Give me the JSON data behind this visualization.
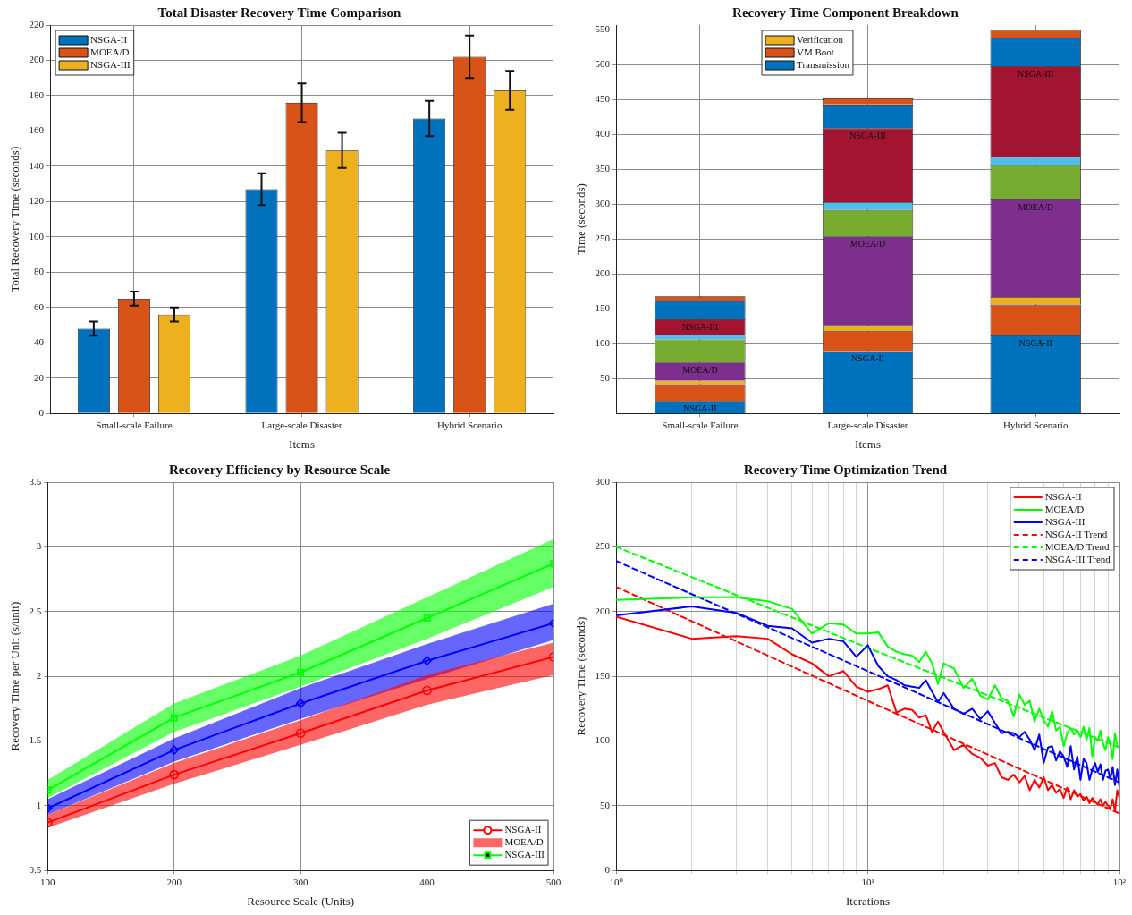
{
  "chart_data": [
    {
      "type": "bar",
      "title": "Total Disaster Recovery Time Comparison",
      "xlabel": "Items",
      "ylabel": "Total Recovery Time (seconds)",
      "categories": [
        "Small-scale Failure",
        "Large-scale Disaster",
        "Hybrid Scenario"
      ],
      "series": [
        {
          "name": "NSGA-II",
          "color": "#0072bd",
          "values": [
            48,
            127,
            167
          ],
          "errors": [
            4,
            9,
            10
          ]
        },
        {
          "name": "MOEA/D",
          "color": "#d95319",
          "values": [
            65,
            176,
            202
          ],
          "errors": [
            4,
            11,
            12
          ]
        },
        {
          "name": "NSGA-III",
          "color": "#edb120",
          "values": [
            56,
            149,
            183
          ],
          "errors": [
            4,
            10,
            11
          ]
        }
      ],
      "ylim": [
        0,
        220
      ],
      "yticks": [
        0,
        20,
        40,
        60,
        80,
        100,
        120,
        140,
        160,
        180,
        200,
        220
      ],
      "grid": true,
      "legend": "top left"
    },
    {
      "type": "bar",
      "title": "Recovery Time Component Breakdown",
      "xlabel": "Items",
      "ylabel": "Time (seconds)",
      "stacked": true,
      "categories": [
        "Small-scale Failure",
        "Large-scale Disaster",
        "Hybrid Scenario"
      ],
      "series": [
        {
          "name": "Transmission",
          "color": "#0072bd",
          "values": [
            18,
            89,
            112
          ]
        },
        {
          "name": "VM Boot",
          "color": "#d95319",
          "values": [
            24,
            29,
            44
          ]
        },
        {
          "name": "Verification",
          "color": "#edb120",
          "values": [
            5,
            9,
            11
          ]
        },
        {
          "color": "#7e2f8e",
          "values": [
            26,
            127,
            140
          ]
        },
        {
          "color": "#77ac30",
          "values": [
            33,
            38,
            49
          ]
        },
        {
          "color": "#4dbeee",
          "values": [
            7,
            11,
            12
          ]
        },
        {
          "color": "#a2142f",
          "values": [
            22,
            106,
            130
          ]
        },
        {
          "color": "#0072bd",
          "values": [
            27,
            34,
            41
          ]
        },
        {
          "color": "#d95319",
          "values": [
            6,
            9,
            11
          ]
        }
      ],
      "annotations": [
        {
          "text": "NSGA-II",
          "x": "Small-scale Failure",
          "y": 18
        },
        {
          "text": "MOEA/D",
          "x": "Small-scale Failure",
          "y": 73
        },
        {
          "text": "NSGA-III",
          "x": "Small-scale Failure",
          "y": 135
        },
        {
          "text": "NSGA-II",
          "x": "Large-scale Disaster",
          "y": 89
        },
        {
          "text": "MOEA/D",
          "x": "Large-scale Disaster",
          "y": 254
        },
        {
          "text": "NSGA-III",
          "x": "Large-scale Disaster",
          "y": 409
        },
        {
          "text": "NSGA-II",
          "x": "Hybrid Scenario",
          "y": 112
        },
        {
          "text": "MOEA/D",
          "x": "Hybrid Scenario",
          "y": 307
        },
        {
          "text": "NSGA-III",
          "x": "Hybrid Scenario",
          "y": 498
        }
      ],
      "ylim": [
        0,
        557
      ],
      "yticks": [
        50,
        100,
        150,
        200,
        250,
        300,
        350,
        400,
        450,
        500,
        550
      ],
      "grid": true,
      "legend": "top"
    },
    {
      "type": "line",
      "title": "Recovery Efficiency by Resource Scale",
      "xlabel": "Resource Scale (Units)",
      "ylabel": "Recovery Time per Unit (s/unit)",
      "x": [
        100,
        200,
        300,
        400,
        500
      ],
      "series": [
        {
          "name": "NSGA-II",
          "color": "#ff0000",
          "marker": "circle",
          "values": [
            0.87,
            1.24,
            1.56,
            1.89,
            2.15
          ],
          "lower": [
            0.83,
            1.17,
            1.47,
            1.78,
            2.01
          ],
          "upper": [
            0.93,
            1.33,
            1.66,
            2.01,
            2.26
          ]
        },
        {
          "name": "MOEA/D",
          "type": "area",
          "color": "#ff6666",
          "values": [
            null,
            null,
            null,
            null,
            null
          ]
        },
        {
          "name": "NSGA-III",
          "color": "#00ff00",
          "marker": "square",
          "values": [
            1.12,
            1.68,
            2.03,
            2.45,
            2.87
          ],
          "lower": [
            1.06,
            1.57,
            1.92,
            2.29,
            2.69
          ],
          "upper": [
            1.2,
            1.79,
            2.16,
            2.61,
            3.06
          ]
        },
        {
          "color": "#0000ff",
          "marker": "diamond",
          "values": [
            0.98,
            1.43,
            1.79,
            2.12,
            2.41
          ],
          "lower": [
            0.93,
            1.34,
            1.67,
            1.98,
            2.28
          ],
          "upper": [
            1.05,
            1.52,
            1.91,
            2.25,
            2.56
          ]
        }
      ],
      "xlim": [
        100,
        500
      ],
      "xticks": [
        100,
        200,
        300,
        400,
        500
      ],
      "ylim": [
        0.5,
        3.5
      ],
      "yticks": [
        0.5,
        1,
        1.5,
        2,
        2.5,
        3,
        3.5
      ],
      "grid": true,
      "legend": "bottom right"
    },
    {
      "type": "line",
      "title": "Recovery Time Optimization Trend",
      "xlabel": "Iterations",
      "ylabel": "Recovery Time (seconds)",
      "log": "x",
      "x": [
        1,
        2,
        3,
        4,
        5,
        6,
        7,
        8,
        9,
        10,
        11,
        12,
        13,
        14,
        15,
        16,
        17,
        18,
        19,
        20,
        22,
        24,
        26,
        28,
        30,
        32,
        34,
        36,
        38,
        40,
        42,
        44,
        46,
        48,
        50,
        52,
        54,
        56,
        58,
        60,
        62,
        64,
        66,
        68,
        70,
        72,
        74,
        76,
        78,
        80,
        82,
        84,
        86,
        88,
        90,
        92,
        94,
        96,
        98,
        100
      ],
      "series": [
        {
          "name": "NSGA-II",
          "color": "#ff0000",
          "values": [
            196,
            179,
            181,
            179,
            167,
            160,
            150,
            154,
            142,
            138,
            140,
            143,
            122,
            125,
            124,
            118,
            120,
            107,
            115,
            107,
            93,
            97,
            90,
            87,
            81,
            83,
            72,
            70,
            74,
            68,
            73,
            62,
            70,
            64,
            72,
            62,
            66,
            60,
            63,
            56,
            64,
            55,
            62,
            57,
            59,
            54,
            57,
            52,
            56,
            53,
            51,
            55,
            50,
            53,
            50,
            48,
            55,
            46,
            62,
            56
          ]
        },
        {
          "name": "MOEA/D",
          "color": "#00ff00",
          "values": [
            209,
            211,
            211,
            208,
            202,
            183,
            191,
            190,
            183,
            183,
            184,
            173,
            169,
            167,
            166,
            161,
            169,
            160,
            144,
            160,
            156,
            141,
            148,
            135,
            132,
            143,
            133,
            131,
            119,
            136,
            128,
            131,
            115,
            125,
            116,
            111,
            123,
            108,
            111,
            96,
            106,
            110,
            105,
            108,
            103,
            111,
            101,
            110,
            88,
            103,
            100,
            108,
            98,
            93,
            103,
            98,
            86,
            106,
            96,
            95
          ]
        },
        {
          "name": "NSGA-III",
          "color": "#0000ff",
          "values": [
            197,
            204,
            199,
            189,
            187,
            176,
            179,
            177,
            165,
            174,
            158,
            150,
            147,
            143,
            142,
            141,
            147,
            138,
            130,
            137,
            125,
            121,
            125,
            117,
            123,
            114,
            106,
            107,
            106,
            103,
            107,
            101,
            93,
            105,
            83,
            95,
            96,
            85,
            92,
            88,
            80,
            96,
            78,
            88,
            70,
            86,
            83,
            70,
            78,
            83,
            76,
            82,
            70,
            77,
            78,
            71,
            80,
            66,
            78,
            64
          ]
        },
        {
          "name": "NSGA-II Trend",
          "color": "#ff0000",
          "line_style": "dashed",
          "x": [
            1,
            10,
            100
          ],
          "values": [
            219,
            131,
            44
          ]
        },
        {
          "name": "MOEA/D Trend",
          "color": "#00ff00",
          "line_style": "dashed",
          "x": [
            1,
            10,
            100
          ],
          "values": [
            250,
            172,
            95
          ]
        },
        {
          "name": "NSGA-III Trend",
          "color": "#0000ff",
          "line_style": "dashed",
          "x": [
            1,
            10,
            100
          ],
          "values": [
            239,
            154,
            68
          ]
        }
      ],
      "xlim": [
        1,
        100
      ],
      "xticks": [
        {
          "value": 1,
          "label": "10⁰"
        },
        {
          "value": 2,
          "label": null
        },
        {
          "value": 3,
          "label": null
        },
        {
          "value": 4,
          "label": null
        },
        {
          "value": 5,
          "label": null
        },
        {
          "value": 6,
          "label": null
        },
        {
          "value": 7,
          "label": null
        },
        {
          "value": 8,
          "label": null
        },
        {
          "value": 9,
          "label": null
        },
        {
          "value": 10,
          "label": "10¹"
        },
        {
          "value": 20,
          "label": null
        },
        {
          "value": 30,
          "label": null
        },
        {
          "value": 40,
          "label": null
        },
        {
          "value": 50,
          "label": null
        },
        {
          "value": 60,
          "label": null
        },
        {
          "value": 70,
          "label": null
        },
        {
          "value": 80,
          "label": null
        },
        {
          "value": 90,
          "label": null
        },
        {
          "value": 100,
          "label": "10²"
        }
      ],
      "ylim": [
        0,
        300
      ],
      "yticks": [
        0,
        50,
        100,
        150,
        200,
        250,
        300
      ],
      "grid": true,
      "legend": "top right"
    }
  ]
}
